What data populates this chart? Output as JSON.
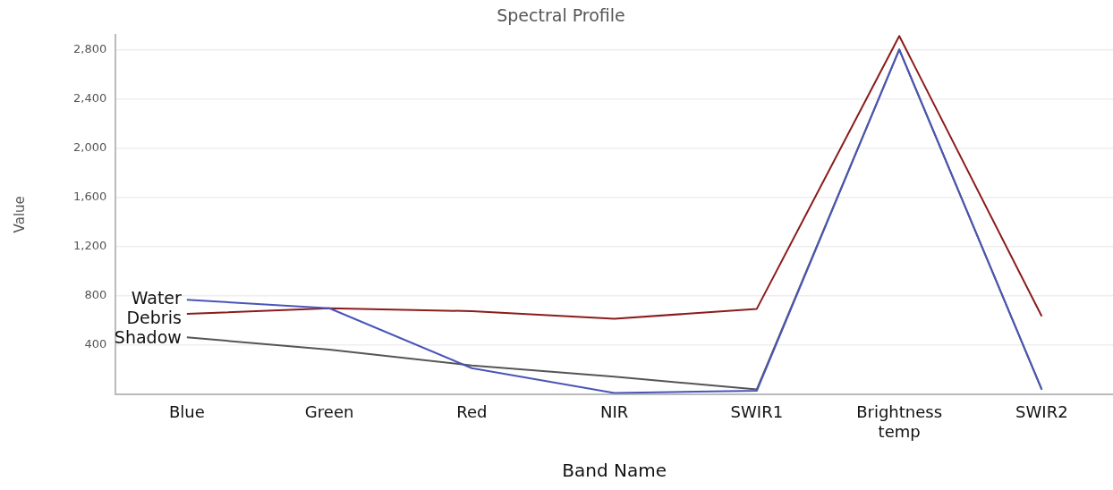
{
  "chart_data": {
    "type": "line",
    "title": "Spectral Profile",
    "xlabel": "Band Name",
    "ylabel": "Value",
    "categories": [
      "Blue",
      "Green",
      "Red",
      "NIR",
      "SWIR1",
      "Brightness temp",
      "SWIR2"
    ],
    "series": [
      {
        "name": "Water",
        "color": "#4a55b8",
        "values": [
          766,
          698,
          211,
          10,
          27,
          2800,
          37
        ]
      },
      {
        "name": "Debris",
        "color": "#8b1c1c",
        "values": [
          652,
          698,
          674,
          612,
          693,
          2910,
          632
        ]
      },
      {
        "name": "Shadow",
        "color": "#555555",
        "values": [
          461,
          362,
          233,
          142,
          39,
          2800,
          37
        ]
      }
    ],
    "ylim": [
      0,
      2920
    ],
    "yticks": [
      {
        "value": 400,
        "label": "400"
      },
      {
        "value": 800,
        "label": "800"
      },
      {
        "value": 1200,
        "label": "1,200"
      },
      {
        "value": 1600,
        "label": "1,600"
      },
      {
        "value": 2000,
        "label": "2,000"
      },
      {
        "value": 2400,
        "label": "2,400"
      },
      {
        "value": 2800,
        "label": "2,800"
      }
    ],
    "grid": "y",
    "legend": false,
    "marker": "none",
    "line_style": "solid"
  }
}
